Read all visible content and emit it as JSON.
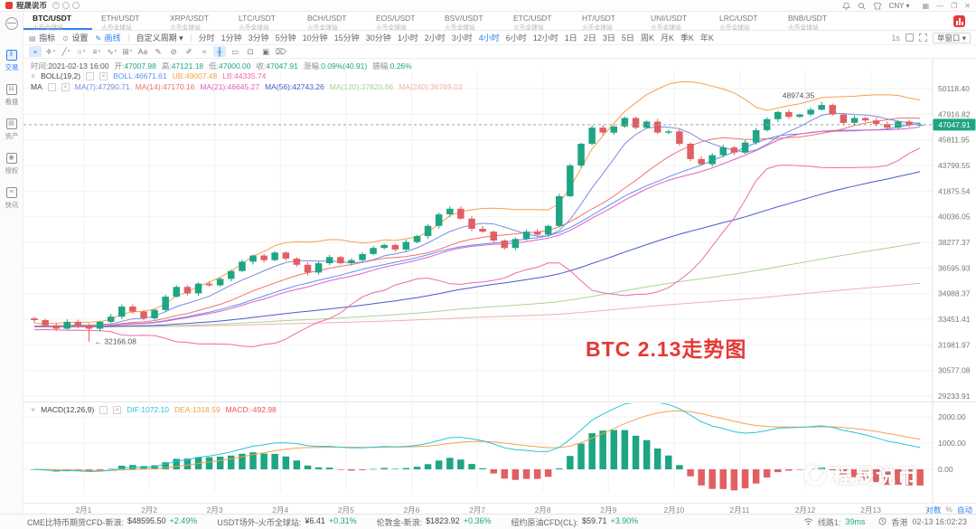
{
  "titlebar": {
    "app_name": "程晟说币",
    "currency": "CNY ▾",
    "window_icons": [
      "layout-icon",
      "minimize-icon",
      "restore-icon",
      "close-icon"
    ]
  },
  "sidebar": {
    "items": [
      {
        "label": "交易",
        "icon": "kline-icon",
        "active": true
      },
      {
        "label": "看盘",
        "icon": "monitor-icon",
        "active": false
      },
      {
        "label": "资产",
        "icon": "wallet-icon",
        "active": false
      },
      {
        "label": "授权",
        "icon": "auth-icon",
        "active": false
      },
      {
        "label": "快讯",
        "icon": "news-icon",
        "active": false
      }
    ]
  },
  "tabs": {
    "items": [
      {
        "pair": "BTC/USDT",
        "exchange": "火币全球站",
        "active": true
      },
      {
        "pair": "ETH/USDT",
        "exchange": "火币全球站",
        "active": false
      },
      {
        "pair": "XRP/USDT",
        "exchange": "火币全球站",
        "active": false
      },
      {
        "pair": "LTC/USDT",
        "exchange": "火币全球站",
        "active": false
      },
      {
        "pair": "BCH/USDT",
        "exchange": "火币全球站",
        "active": false
      },
      {
        "pair": "EOS/USDT",
        "exchange": "火币全球站",
        "active": false
      },
      {
        "pair": "BSV/USDT",
        "exchange": "火币全球站",
        "active": false
      },
      {
        "pair": "ETC/USDT",
        "exchange": "火币全球站",
        "active": false
      },
      {
        "pair": "HT/USDT",
        "exchange": "火币全球站",
        "active": false
      },
      {
        "pair": "UNI/USDT",
        "exchange": "火币全球站",
        "active": false
      },
      {
        "pair": "LRC/USDT",
        "exchange": "火币全球站",
        "active": false
      },
      {
        "pair": "BNB/USDT",
        "exchange": "火币全球站",
        "active": false
      }
    ]
  },
  "toolbar": {
    "indicators": "指标",
    "settings": "设置",
    "draw": "画线",
    "custom_period": "自定义周期 ▾",
    "periods": [
      "分时",
      "1分钟",
      "3分钟",
      "5分钟",
      "10分钟",
      "15分钟",
      "30分钟",
      "1小时",
      "2小时",
      "3小时",
      "4小时",
      "6小时",
      "12小时",
      "1日",
      "2日",
      "3日",
      "5日",
      "周K",
      "月K",
      "季K",
      "年K"
    ],
    "active_period": "4小时",
    "refresh": "1s",
    "window_mode": "单窗口 ▾"
  },
  "drawbar": {
    "tools": [
      {
        "name": "crosshair-icon",
        "glyph": "+",
        "caret": false,
        "active": true
      },
      {
        "name": "cursor-tool-icon",
        "glyph": "✛",
        "caret": true,
        "active": false
      },
      {
        "name": "trend-line-icon",
        "glyph": "╱",
        "caret": true,
        "active": false
      },
      {
        "name": "ellipse-tool-icon",
        "glyph": "○",
        "caret": true,
        "active": false
      },
      {
        "name": "fib-retracement-icon",
        "glyph": "≡",
        "caret": true,
        "active": false
      },
      {
        "name": "wave-tool-icon",
        "glyph": "∿",
        "caret": true,
        "active": false
      },
      {
        "name": "gann-grid-icon",
        "glyph": "⊞",
        "caret": true,
        "active": false
      },
      {
        "name": "text-tool-icon",
        "glyph": "Aa",
        "caret": false,
        "active": false
      },
      {
        "name": "brush-tool-icon",
        "glyph": "✎",
        "caret": false,
        "active": false
      },
      {
        "name": "eraser-tool-icon",
        "glyph": "⊘",
        "caret": false,
        "active": false
      },
      {
        "name": "pencil-tool-icon",
        "glyph": "✐",
        "caret": false,
        "active": false
      },
      {
        "name": "freeline-tool-icon",
        "glyph": "≈",
        "caret": false,
        "active": false
      },
      {
        "name": "pattern-mark-icon",
        "glyph": "╫",
        "caret": false,
        "active": true
      },
      {
        "name": "order-mark-icon",
        "glyph": "▭",
        "caret": false,
        "active": false
      },
      {
        "name": "copy-drawing-icon",
        "glyph": "⊡",
        "caret": false,
        "active": false
      },
      {
        "name": "screenshot-icon",
        "glyph": "▣",
        "caret": false,
        "active": false
      },
      {
        "name": "delete-drawing-icon",
        "glyph": "⌦",
        "caret": false,
        "active": false
      }
    ]
  },
  "chart": {
    "ohlc_row": {
      "segments": [
        {
          "label": "时间:",
          "value": "2021-02-13 16:00",
          "color": "#555555"
        },
        {
          "label": "开:",
          "value": "47007.98",
          "color": "#1ea584"
        },
        {
          "label": "高:",
          "value": "47121.18",
          "color": "#1ea584"
        },
        {
          "label": "低:",
          "value": "47000.00",
          "color": "#1ea584"
        },
        {
          "label": "收:",
          "value": "47047.91",
          "color": "#1ea584"
        },
        {
          "label": "涨幅:",
          "value": "0.09%(40.91)",
          "color": "#1ea584"
        },
        {
          "label": "振幅:",
          "value": "0.26%",
          "color": "#1ea584"
        }
      ]
    },
    "boll_row": {
      "title": "BOLL(19,2)",
      "segments": [
        {
          "label": "BOLL:",
          "value": "46671.61",
          "color": "#5b8ff9"
        },
        {
          "label": "UB:",
          "value": "49007.48",
          "color": "#f5a04d"
        },
        {
          "label": "LB:",
          "value": "44335.74",
          "color": "#ef6aa7"
        }
      ]
    },
    "ma_row": {
      "title": "MA",
      "segments": [
        {
          "label": "MA(7):",
          "value": "47290.71",
          "color": "#7c8ce0"
        },
        {
          "label": "MA(14):",
          "value": "47170.16",
          "color": "#f0736b"
        },
        {
          "label": "MA(21):",
          "value": "46645.27",
          "color": "#e35fc3"
        },
        {
          "label": "MA(56):",
          "value": "42743.26",
          "color": "#4a5ac9"
        },
        {
          "label": "MA(120):",
          "value": "37820.66",
          "color": "#abd395"
        },
        {
          "label": "MA(240):",
          "value": "36769.03",
          "color": "#f3b0ac"
        }
      ]
    },
    "macd_row": {
      "title": "MACD(12,26,9)",
      "segments": [
        {
          "label": "DIF:",
          "value": "1072.10",
          "color": "#26c6da"
        },
        {
          "label": "DEA:",
          "value": "1318.59",
          "color": "#f5a04d"
        },
        {
          "label": "MACD:",
          "value": "-492.98",
          "color": "#ef5350"
        }
      ]
    },
    "annotation": "BTC 2.13走势图",
    "last_price": "47047.91",
    "low_label": "← 32166.08",
    "high_label": "48974.35",
    "price_axis": [
      "50118.40",
      "47916.82",
      "45811.95",
      "43799.55",
      "41875.54",
      "40036.05",
      "38277.37",
      "36595.93",
      "34988.37",
      "33451.41",
      "31981.97",
      "30577.08",
      "29233.91"
    ],
    "macd_axis": [
      "2000.00",
      "1000.00",
      "0.00"
    ],
    "time_axis": [
      "2月1",
      "2月2",
      "2月3",
      "2月4",
      "2月5",
      "2月6",
      "2月7",
      "2月8",
      "2月9",
      "2月10",
      "2月11",
      "2月12",
      "2月13"
    ],
    "scale_options": [
      {
        "label": "对数",
        "active": true
      },
      {
        "label": "%",
        "active": false
      },
      {
        "label": "自动",
        "active": true
      }
    ]
  },
  "watermark": {
    "text": "程晟说币"
  },
  "statusbar": {
    "items": [
      {
        "label": "CME比特币期货CFD-新浪:",
        "value": "$48595.50",
        "change": "+2.49%"
      },
      {
        "label": "USDT场外-火币全球站:",
        "value": "¥6.41",
        "change": "+0.31%"
      },
      {
        "label": "伦敦金-新浪:",
        "value": "$1823.92",
        "change": "+0.36%"
      },
      {
        "label": "纽约原油CFD(CL):",
        "value": "$59.71",
        "change": "+3.90%"
      }
    ],
    "line_label": "线路1:",
    "latency": "39ms",
    "region": "香港",
    "time": "02-13 16:02:23"
  },
  "chart_data": {
    "type": "candlestick",
    "symbol": "BTC/USDT",
    "period": "4小时",
    "scale": "log",
    "first_open": 33500,
    "closes": [
      33400,
      33100,
      32900,
      33300,
      33100,
      32900,
      33300,
      33600,
      34200,
      33900,
      33500,
      34000,
      34800,
      35400,
      35000,
      35600,
      35500,
      35900,
      36400,
      37000,
      37400,
      37100,
      37600,
      37200,
      36800,
      36300,
      36900,
      37300,
      36900,
      37100,
      37500,
      37900,
      38100,
      37800,
      38300,
      38700,
      39400,
      40200,
      40600,
      39900,
      39200,
      39000,
      38400,
      37900,
      38500,
      39000,
      38800,
      39400,
      41500,
      43800,
      45500,
      46800,
      46400,
      46900,
      47600,
      46800,
      47300,
      46400,
      46500,
      45500,
      44300,
      43900,
      44600,
      45200,
      44800,
      45600,
      46600,
      47500,
      48100,
      47700,
      47900,
      48300,
      48700,
      47900,
      47200,
      47600,
      47400,
      47100,
      46800,
      47300,
      47000,
      47047.91
    ],
    "candles_per_day": 6,
    "first_day_tick_index": 5,
    "low_point": {
      "index": 5,
      "value": 32166.08
    },
    "high_point": {
      "index": 72,
      "value": 48974.35
    },
    "last_close": 47047.91,
    "current": {
      "open": 47007.98,
      "high": 47121.18,
      "low": 47000.0,
      "close": 47047.91
    },
    "price_axis_values": [
      50118.4,
      47916.82,
      45811.95,
      43799.55,
      41875.54,
      40036.05,
      38277.37,
      36595.93,
      34988.37,
      33451.41,
      31981.97,
      30577.08,
      29233.91
    ],
    "price_range": [
      29233.91,
      50118.4
    ],
    "macd_axis_values": [
      2000,
      1000,
      0
    ],
    "indicators": {
      "boll_period": 19,
      "ma_periods": [
        7,
        14,
        21,
        56,
        120,
        240
      ],
      "macd_params": [
        12,
        26,
        9
      ]
    },
    "colors": {
      "up": "#1ea584",
      "down": "#e15f62",
      "boll": "#5b8ff9",
      "ub": "#f5a04d",
      "lb": "#ef6aa7",
      "ma7": "#7c8ce0",
      "ma14": "#f0736b",
      "ma21": "#e35fc3",
      "ma56": "#4a5ac9",
      "ma120": "#abd395",
      "ma240": "#f3b0ac",
      "dif": "#26c6da",
      "dea": "#f5a04d",
      "accent": "#2f80ed",
      "price_badge": "#1ea584",
      "annotation": "#e53935"
    }
  }
}
